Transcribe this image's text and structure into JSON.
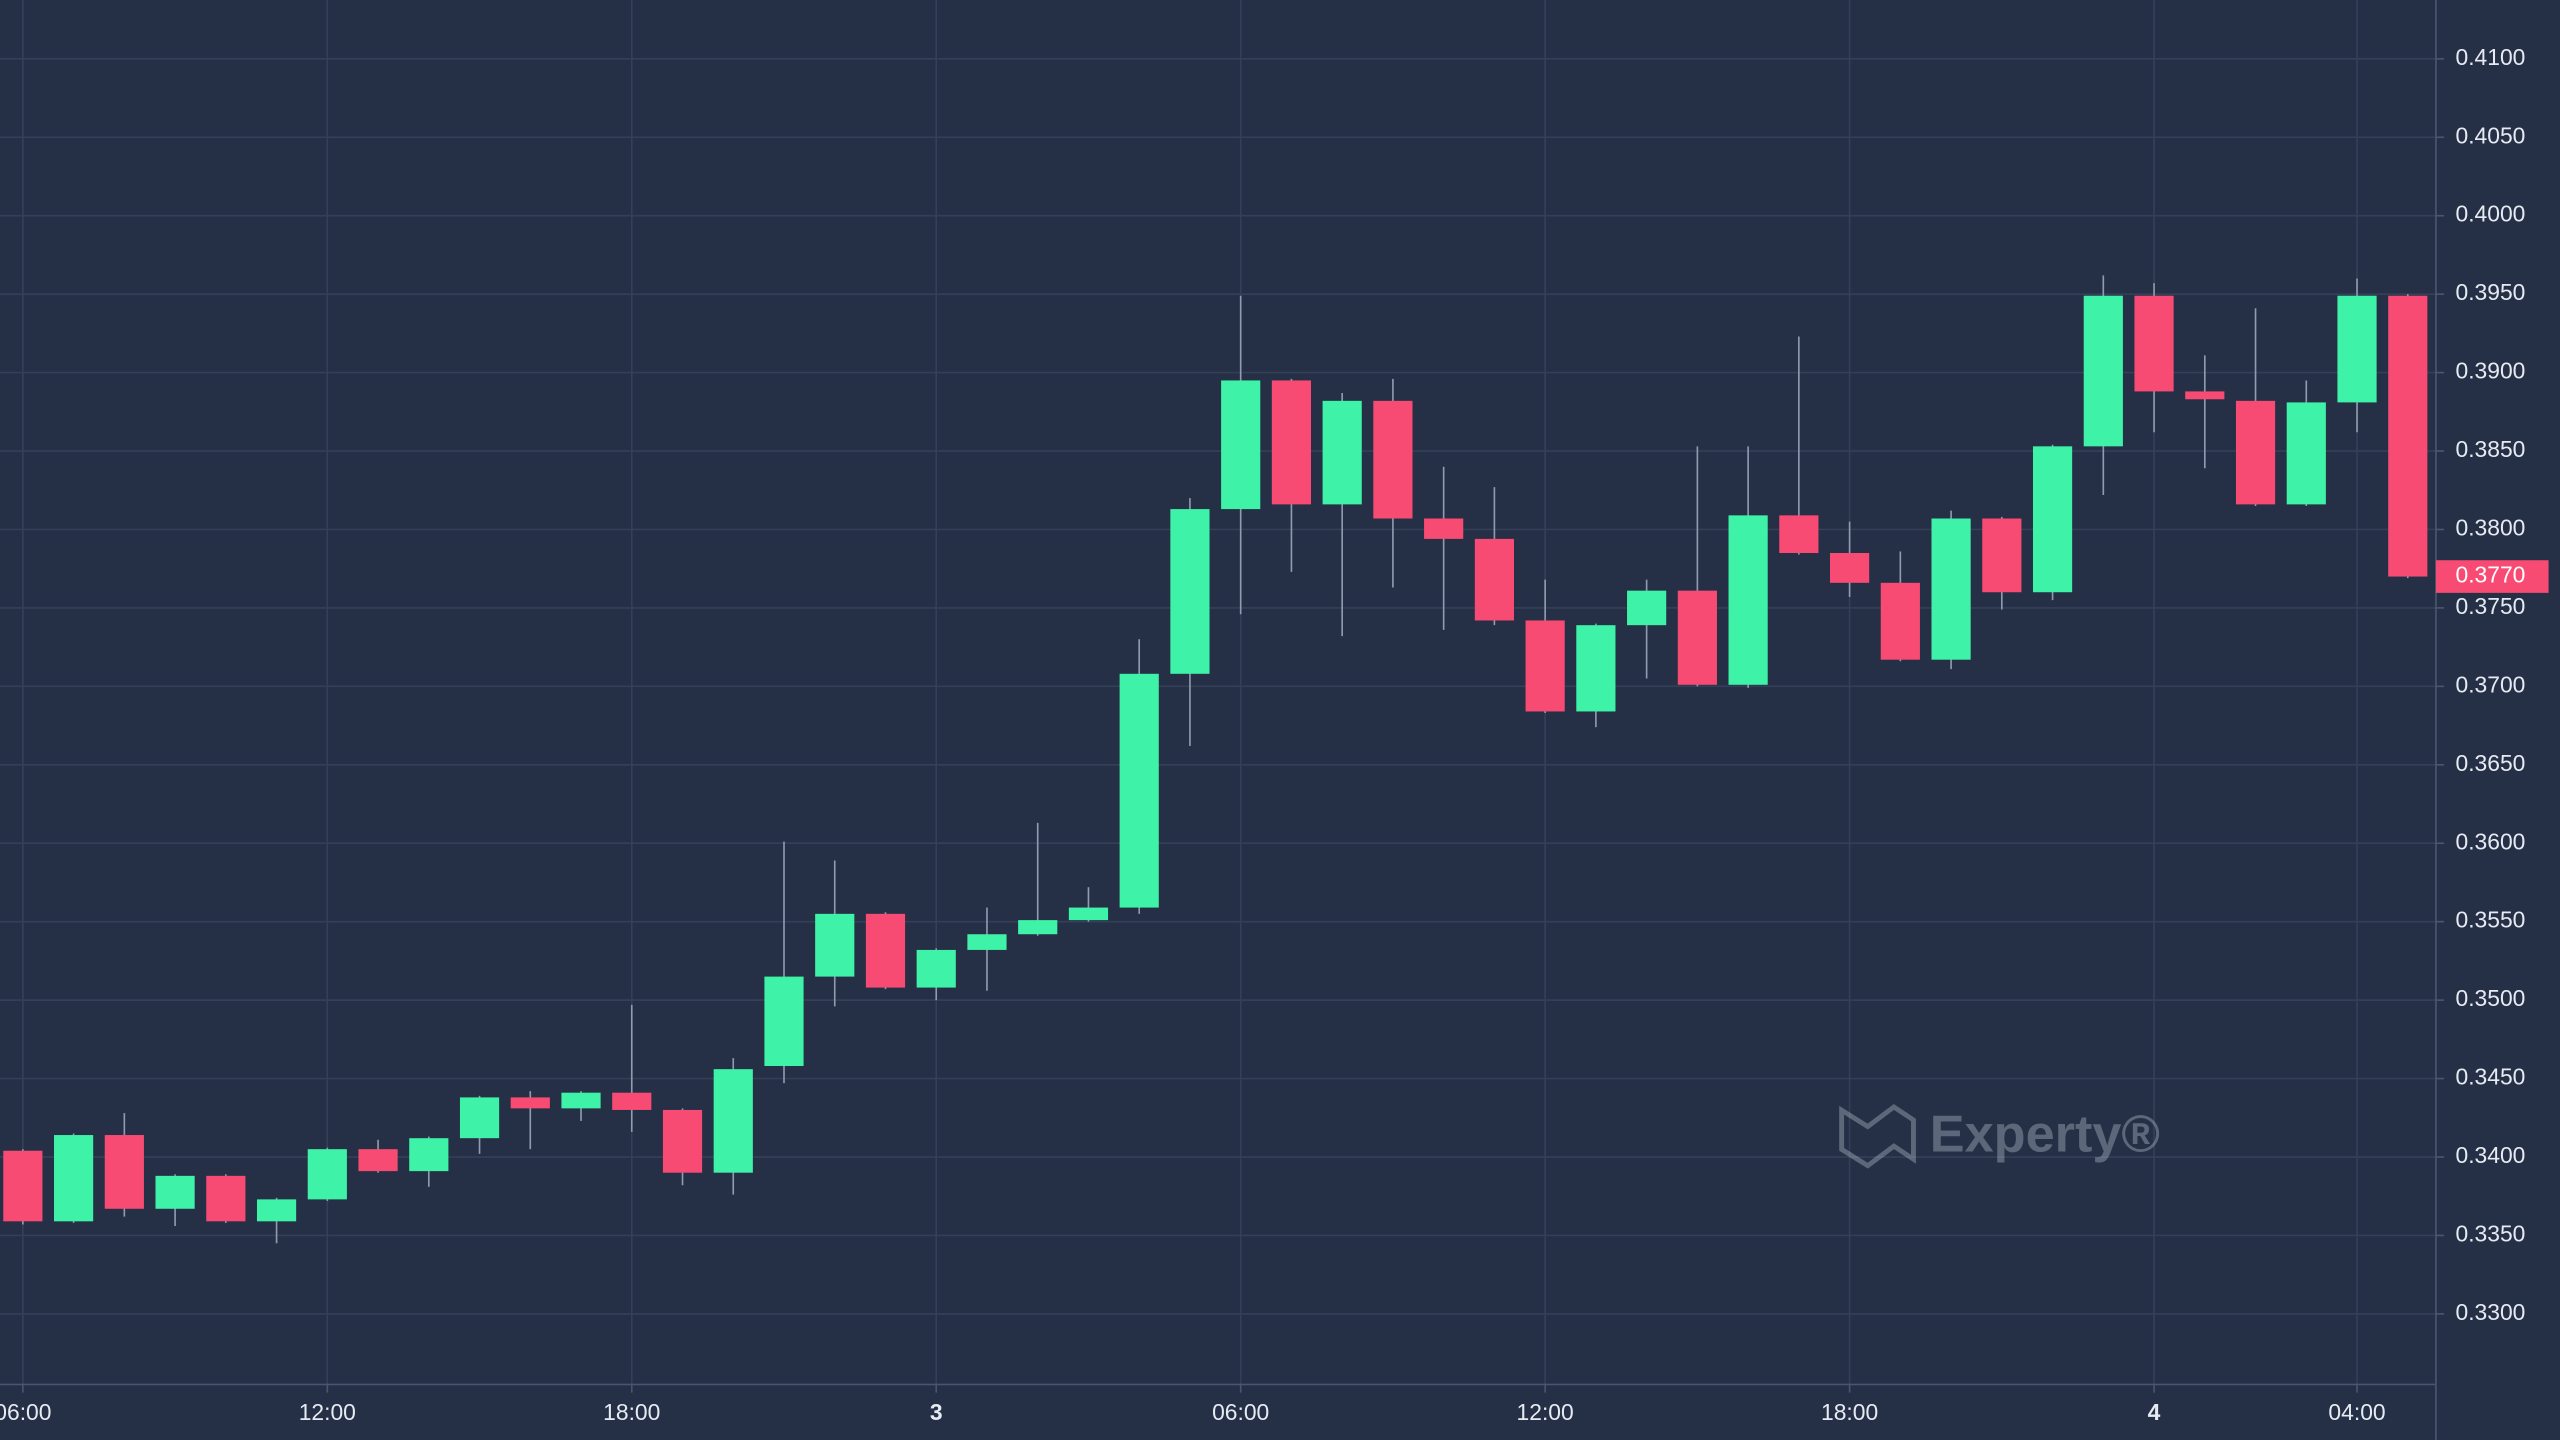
{
  "chart_data": {
    "type": "candlestick",
    "categories": [
      "06:00",
      null,
      null,
      null,
      null,
      null,
      "12:00",
      null,
      null,
      null,
      null,
      null,
      "18:00",
      null,
      null,
      null,
      null,
      null,
      "3",
      null,
      null,
      null,
      null,
      null,
      "06:00",
      null,
      null,
      null,
      null,
      null,
      "12:00",
      null,
      null,
      null,
      null,
      null,
      "18:00",
      null,
      null,
      null,
      null,
      null,
      "4",
      null,
      null,
      null,
      "04:00",
      null
    ],
    "open": [
      0.3404,
      0.3359,
      0.3414,
      0.3367,
      0.3388,
      0.3359,
      0.3373,
      0.3405,
      0.3391,
      0.3412,
      0.3438,
      0.3431,
      0.3441,
      0.343,
      0.339,
      0.3458,
      0.3515,
      0.3555,
      0.3508,
      0.3532,
      0.3542,
      0.3551,
      0.3559,
      0.3708,
      0.3813,
      0.3895,
      0.3816,
      0.3882,
      0.3807,
      0.3794,
      0.3742,
      0.3684,
      0.3739,
      0.3761,
      0.3701,
      0.3809,
      0.3785,
      0.3766,
      0.3717,
      0.3807,
      0.376,
      0.3853,
      0.3949,
      0.3888,
      0.3882,
      0.3816,
      0.3881,
      0.3949
    ],
    "high": [
      0.3405,
      0.3415,
      0.3428,
      0.3389,
      0.3389,
      0.3374,
      0.3406,
      0.3411,
      0.3413,
      0.3439,
      0.3442,
      0.3442,
      0.3497,
      0.3431,
      0.3463,
      0.3601,
      0.3589,
      0.3556,
      0.3533,
      0.3559,
      0.3613,
      0.3572,
      0.373,
      0.382,
      0.3949,
      0.3896,
      0.3887,
      0.3896,
      0.384,
      0.3827,
      0.3768,
      0.374,
      0.3768,
      0.3853,
      0.3853,
      0.3923,
      0.3805,
      0.3786,
      0.3812,
      0.3808,
      0.3854,
      0.3962,
      0.3957,
      0.3911,
      0.3941,
      0.3895,
      0.396,
      0.395
    ],
    "low": [
      0.3357,
      0.3358,
      0.3362,
      0.3356,
      0.3358,
      0.3345,
      0.3372,
      0.339,
      0.3381,
      0.3402,
      0.3405,
      0.3423,
      0.3416,
      0.3382,
      0.3376,
      0.3447,
      0.3496,
      0.3507,
      0.35,
      0.3506,
      0.3541,
      0.355,
      0.3555,
      0.3662,
      0.3746,
      0.3773,
      0.3732,
      0.3763,
      0.3736,
      0.3739,
      0.3683,
      0.3674,
      0.3705,
      0.37,
      0.3699,
      0.3784,
      0.3757,
      0.3716,
      0.3711,
      0.3749,
      0.3755,
      0.3822,
      0.3862,
      0.3839,
      0.3815,
      0.3815,
      0.3862,
      0.3769
    ],
    "close": [
      0.3359,
      0.3414,
      0.3367,
      0.3388,
      0.3359,
      0.3373,
      0.3405,
      0.3391,
      0.3412,
      0.3438,
      0.3431,
      0.3441,
      0.343,
      0.339,
      0.3456,
      0.3515,
      0.3555,
      0.3508,
      0.3532,
      0.3542,
      0.3551,
      0.3559,
      0.3708,
      0.3813,
      0.3895,
      0.3816,
      0.3882,
      0.3807,
      0.3794,
      0.3742,
      0.3684,
      0.3739,
      0.3761,
      0.3701,
      0.3809,
      0.3785,
      0.3766,
      0.3717,
      0.3807,
      0.376,
      0.3853,
      0.3949,
      0.3888,
      0.3883,
      0.3816,
      0.3881,
      0.3949,
      0.377
    ],
    "up_color": "#3ef2a8",
    "down_color": "#f84b74",
    "ylim": [
      0.3255,
      0.41375
    ],
    "yticks": [
      {
        "value": 0.33,
        "label": "0.3300"
      },
      {
        "value": 0.335,
        "label": "0.3350"
      },
      {
        "value": 0.34,
        "label": "0.3400"
      },
      {
        "value": 0.345,
        "label": "0.3450"
      },
      {
        "value": 0.35,
        "label": "0.3500"
      },
      {
        "value": 0.355,
        "label": "0.3550"
      },
      {
        "value": 0.36,
        "label": "0.3600"
      },
      {
        "value": 0.365,
        "label": "0.3650"
      },
      {
        "value": 0.37,
        "label": "0.3700"
      },
      {
        "value": 0.375,
        "label": "0.3750"
      },
      {
        "value": 0.38,
        "label": "0.3800"
      },
      {
        "value": 0.385,
        "label": "0.3850"
      },
      {
        "value": 0.39,
        "label": "0.3900"
      },
      {
        "value": 0.395,
        "label": "0.3950"
      },
      {
        "value": 0.4,
        "label": "0.4000"
      },
      {
        "value": 0.405,
        "label": "0.4050"
      },
      {
        "value": 0.41,
        "label": "0.4100"
      }
    ],
    "last_price": {
      "value": 0.377,
      "label": "0.3770"
    },
    "grid": true,
    "watermark": "Experty®"
  }
}
